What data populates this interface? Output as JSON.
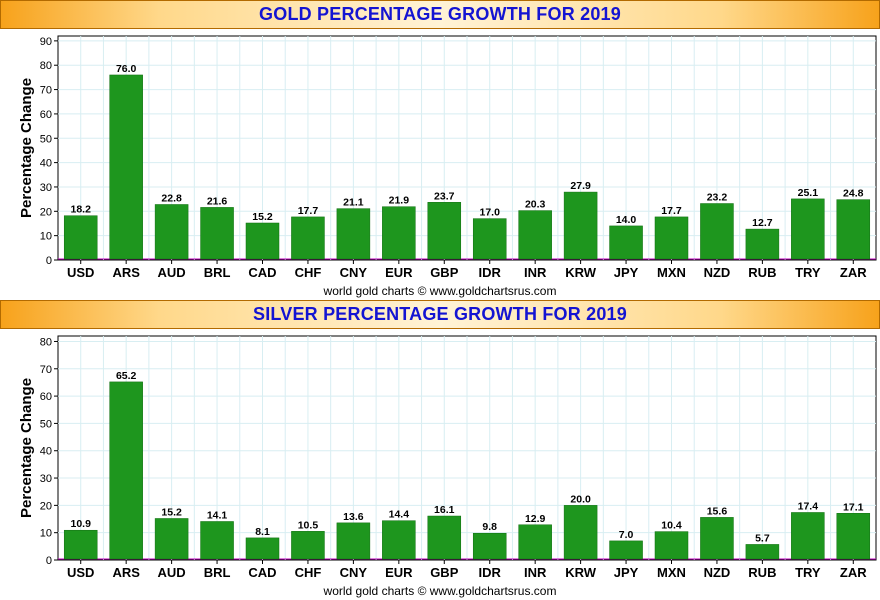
{
  "chart_data": [
    {
      "type": "bar",
      "title": "GOLD PERCENTAGE GROWTH FOR 2019",
      "ylabel": "Percentage Change",
      "xlabel": "",
      "footer": "world gold charts © www.goldchartsrus.com",
      "categories": [
        "USD",
        "ARS",
        "AUD",
        "BRL",
        "CAD",
        "CHF",
        "CNY",
        "EUR",
        "GBP",
        "IDR",
        "INR",
        "KRW",
        "JPY",
        "MXN",
        "NZD",
        "RUB",
        "TRY",
        "ZAR"
      ],
      "values": [
        18.2,
        76.0,
        22.8,
        21.6,
        15.2,
        17.7,
        21.1,
        21.9,
        23.7,
        17.0,
        20.3,
        27.9,
        14.0,
        17.7,
        23.2,
        12.7,
        25.1,
        24.8
      ],
      "value_labels": [
        "18.2",
        "76.0",
        "22.8",
        "21.6",
        "15.2",
        "17.7",
        "21.1",
        "21.9",
        "23.7",
        "17.0",
        "20.3",
        "27.9",
        "14.0",
        "17.7",
        "23.2",
        "12.7",
        "25.1",
        "24.8"
      ],
      "ylim": [
        0,
        92
      ],
      "yticks": [
        0,
        10,
        20,
        30,
        40,
        50,
        60,
        70,
        80,
        90
      ],
      "grid": true,
      "legend": "none",
      "bar_color": "#1e961e"
    },
    {
      "type": "bar",
      "title": "SILVER PERCENTAGE GROWTH FOR 2019",
      "ylabel": "Percentage Change",
      "xlabel": "",
      "footer": "world gold charts © www.goldchartsrus.com",
      "categories": [
        "USD",
        "ARS",
        "AUD",
        "BRL",
        "CAD",
        "CHF",
        "CNY",
        "EUR",
        "GBP",
        "IDR",
        "INR",
        "KRW",
        "JPY",
        "MXN",
        "NZD",
        "RUB",
        "TRY",
        "ZAR"
      ],
      "values": [
        10.9,
        65.2,
        15.2,
        14.1,
        8.1,
        10.5,
        13.6,
        14.4,
        16.1,
        9.8,
        12.9,
        20.0,
        7.0,
        10.4,
        15.6,
        5.7,
        17.4,
        17.1
      ],
      "value_labels": [
        "10.9",
        "65.2",
        "15.2",
        "14.1",
        "8.1",
        "10.5",
        "13.6",
        "14.4",
        "16.1",
        "9.8",
        "12.9",
        "20.0",
        "7.0",
        "10.4",
        "15.6",
        "5.7",
        "17.4",
        "17.1"
      ],
      "ylim": [
        0,
        82
      ],
      "yticks": [
        0,
        10,
        20,
        30,
        40,
        50,
        60,
        70,
        80
      ],
      "grid": true,
      "legend": "none",
      "bar_color": "#1e961e"
    }
  ]
}
